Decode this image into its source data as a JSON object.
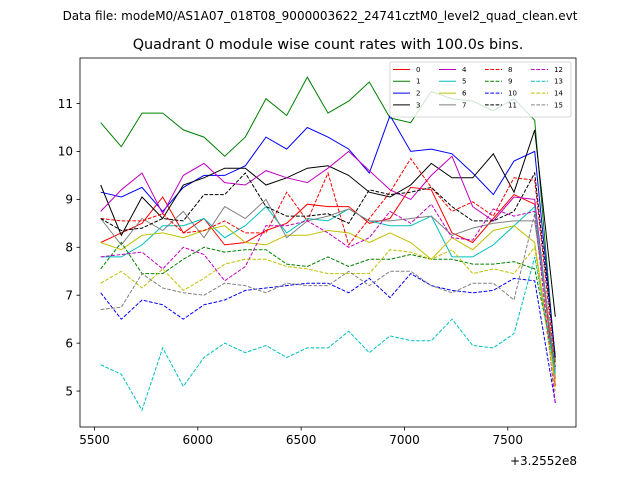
{
  "figure": {
    "suptitle": "Data file: modeM0/AS1A07_018T08_9000003622_24741cztM0_level2_quad_clean.evt"
  },
  "chart_data": {
    "type": "line",
    "title": "Quadrant 0 module wise count rates with 100.0s bins.",
    "xlabel": "",
    "ylabel": "",
    "x_offset_label": "+3.2552e8",
    "xlim": [
      5430,
      7830
    ],
    "ylim": [
      4.25,
      11.95
    ],
    "xticks": [
      5500,
      6000,
      6500,
      7000,
      7500
    ],
    "yticks": [
      5,
      6,
      7,
      8,
      9,
      10,
      11
    ],
    "legend_position": "top-right",
    "legend_columns": 4,
    "x": [
      5530,
      5630,
      5730,
      5830,
      5930,
      6030,
      6130,
      6230,
      6330,
      6430,
      6530,
      6630,
      6730,
      6830,
      6930,
      7030,
      7130,
      7230,
      7330,
      7430,
      7530,
      7630,
      7730
    ],
    "series": [
      {
        "name": "0",
        "color": "#ff0000",
        "style": "solid",
        "values": [
          8.1,
          8.3,
          8.5,
          9.05,
          8.3,
          8.6,
          8.05,
          8.1,
          8.35,
          8.5,
          8.9,
          8.85,
          8.85,
          8.5,
          8.6,
          9.25,
          9.2,
          8.3,
          8.1,
          8.6,
          9.1,
          8.9,
          5.1
        ]
      },
      {
        "name": "1",
        "color": "#008000",
        "style": "solid",
        "values": [
          10.6,
          10.1,
          10.8,
          10.8,
          10.45,
          10.3,
          9.9,
          10.3,
          11.1,
          10.75,
          11.55,
          10.8,
          11.05,
          11.45,
          10.7,
          10.6,
          11.25,
          11.1,
          11.05,
          10.85,
          11.1,
          10.65,
          5.6
        ]
      },
      {
        "name": "2",
        "color": "#0000ff",
        "style": "solid",
        "values": [
          9.15,
          9.05,
          9.25,
          8.75,
          9.25,
          9.5,
          9.5,
          9.7,
          10.3,
          10.05,
          10.5,
          10.3,
          10.05,
          9.55,
          10.75,
          10.0,
          10.05,
          9.95,
          9.55,
          9.1,
          9.8,
          10.0,
          5.7
        ]
      },
      {
        "name": "3",
        "color": "#000000",
        "style": "solid",
        "values": [
          9.3,
          8.25,
          9.05,
          8.6,
          9.3,
          9.45,
          9.65,
          9.65,
          9.3,
          9.45,
          9.65,
          9.7,
          9.5,
          9.15,
          9.05,
          9.3,
          9.75,
          9.45,
          9.45,
          9.95,
          9.15,
          10.45,
          6.55
        ]
      },
      {
        "name": "4",
        "color": "#c000c0",
        "style": "solid",
        "values": [
          8.75,
          9.2,
          9.55,
          8.7,
          9.5,
          9.75,
          9.35,
          9.3,
          9.6,
          9.45,
          9.35,
          9.65,
          10.0,
          9.6,
          9.2,
          9.0,
          9.5,
          9.9,
          8.85,
          8.55,
          9.05,
          9.0,
          5.25
        ]
      },
      {
        "name": "5",
        "color": "#00c0c0",
        "style": "solid",
        "values": [
          7.8,
          7.8,
          8.05,
          8.45,
          8.45,
          8.6,
          8.2,
          8.45,
          8.85,
          8.3,
          8.6,
          8.55,
          8.8,
          8.55,
          8.45,
          8.45,
          8.65,
          7.8,
          7.8,
          8.05,
          8.45,
          8.85,
          5.35
        ]
      },
      {
        "name": "6",
        "color": "#c0c000",
        "style": "solid",
        "values": [
          8.1,
          7.95,
          8.25,
          8.3,
          8.2,
          8.35,
          8.45,
          8.1,
          8.05,
          8.25,
          8.25,
          8.35,
          8.3,
          8.1,
          8.3,
          8.1,
          7.75,
          8.2,
          7.95,
          8.35,
          8.45,
          8.1,
          5.2
        ]
      },
      {
        "name": "7",
        "color": "#808080",
        "style": "solid",
        "values": [
          8.6,
          8.05,
          8.6,
          8.35,
          8.75,
          8.2,
          8.85,
          8.6,
          9.0,
          8.2,
          8.55,
          8.65,
          8.8,
          8.55,
          8.55,
          8.6,
          8.65,
          8.25,
          8.4,
          8.5,
          8.55,
          8.55,
          5.5
        ]
      },
      {
        "name": "8",
        "color": "#ff0000",
        "style": "dashed",
        "values": [
          8.6,
          8.55,
          8.55,
          8.7,
          8.3,
          8.35,
          8.55,
          8.3,
          8.3,
          9.15,
          8.55,
          9.55,
          8.05,
          8.6,
          9.15,
          9.85,
          9.25,
          8.75,
          8.95,
          8.65,
          9.45,
          9.4,
          5.5
        ]
      },
      {
        "name": "9",
        "color": "#008000",
        "style": "dashed",
        "values": [
          7.55,
          8.1,
          7.45,
          7.45,
          7.75,
          8.0,
          7.9,
          7.95,
          7.95,
          7.65,
          7.6,
          7.8,
          7.6,
          7.75,
          7.75,
          7.85,
          7.75,
          7.75,
          7.65,
          7.65,
          7.7,
          7.55,
          5.5
        ]
      },
      {
        "name": "10",
        "color": "#0000ff",
        "style": "dashed",
        "values": [
          7.05,
          6.5,
          6.9,
          6.8,
          6.5,
          6.8,
          6.9,
          7.1,
          7.15,
          7.2,
          7.25,
          7.25,
          7.05,
          7.35,
          6.95,
          7.45,
          7.2,
          7.1,
          7.05,
          7.1,
          7.35,
          7.3,
          4.75
        ]
      },
      {
        "name": "11",
        "color": "#000000",
        "style": "dashed",
        "values": [
          8.6,
          8.35,
          8.4,
          8.6,
          8.55,
          9.1,
          9.1,
          9.55,
          8.85,
          8.65,
          8.65,
          8.7,
          8.5,
          9.2,
          9.1,
          9.15,
          9.25,
          8.85,
          8.55,
          8.55,
          8.75,
          9.55,
          5.7
        ]
      },
      {
        "name": "12",
        "color": "#c000c0",
        "style": "dashed",
        "values": [
          7.8,
          7.85,
          7.9,
          7.55,
          8.0,
          7.85,
          7.3,
          7.6,
          8.45,
          8.45,
          8.55,
          8.3,
          8.0,
          8.2,
          8.75,
          8.5,
          8.9,
          8.2,
          8.15,
          8.8,
          8.65,
          8.75,
          4.75
        ]
      },
      {
        "name": "13",
        "color": "#00c0c0",
        "style": "dashed",
        "values": [
          5.55,
          5.35,
          4.6,
          5.9,
          5.1,
          5.7,
          6.0,
          5.8,
          5.95,
          5.7,
          5.9,
          5.9,
          6.25,
          5.8,
          6.15,
          6.05,
          6.05,
          6.5,
          5.95,
          5.9,
          6.2,
          7.8,
          5.4
        ]
      },
      {
        "name": "14",
        "color": "#c0c000",
        "style": "dashed",
        "values": [
          7.25,
          7.5,
          7.15,
          7.55,
          7.1,
          7.35,
          7.65,
          7.75,
          7.75,
          7.6,
          7.55,
          7.45,
          7.45,
          7.45,
          7.95,
          7.9,
          7.75,
          7.95,
          7.45,
          7.55,
          7.45,
          8.0,
          5.0
        ]
      },
      {
        "name": "15",
        "color": "#808080",
        "style": "dashed",
        "values": [
          6.7,
          6.75,
          7.45,
          7.15,
          7.05,
          7.0,
          7.25,
          7.2,
          7.05,
          7.25,
          7.2,
          7.2,
          7.5,
          7.2,
          7.5,
          7.5,
          7.2,
          7.05,
          7.25,
          7.25,
          6.9,
          8.7,
          5.45
        ]
      }
    ]
  }
}
